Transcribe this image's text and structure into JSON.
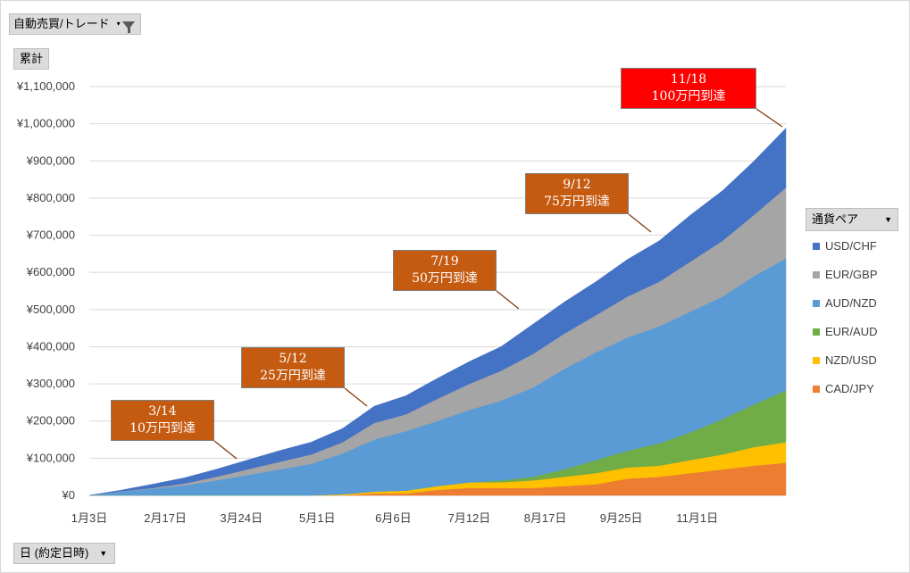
{
  "filter_button": {
    "label": "自動売買/トレード",
    "arrow": "▾",
    "icon": "funnel-icon"
  },
  "value_button": {
    "label": "累計"
  },
  "axis_button": {
    "label": "日 (約定日時)",
    "arrow": "▼"
  },
  "legend": {
    "title": "通貨ペア",
    "arrow": "▼"
  },
  "callouts": [
    {
      "date": "3/14",
      "text": "10万円到達",
      "color": "#c55a11"
    },
    {
      "date": "5/12",
      "text": "25万円到達",
      "color": "#c55a11"
    },
    {
      "date": "7/19",
      "text": "50万円到達",
      "color": "#c55a11"
    },
    {
      "date": "9/12",
      "text": "75万円到達",
      "color": "#c55a11"
    },
    {
      "date": "11/18",
      "text": "100万円到達",
      "color": "#ff0000"
    }
  ],
  "chart_data": {
    "type": "area",
    "stacked": true,
    "title": "",
    "xlabel": "日 (約定日時)",
    "ylabel": "累計",
    "ylim": [
      0,
      1100000
    ],
    "yticks": [
      0,
      100000,
      200000,
      300000,
      400000,
      500000,
      600000,
      700000,
      800000,
      900000,
      1000000,
      1100000
    ],
    "ytick_labels": [
      "¥0",
      "¥100,000",
      "¥200,000",
      "¥300,000",
      "¥400,000",
      "¥500,000",
      "¥600,000",
      "¥700,000",
      "¥800,000",
      "¥900,000",
      "¥1,000,000",
      "¥1,100,000"
    ],
    "xtick_labels": [
      "1月3日",
      "2月17日",
      "3月24日",
      "5月1日",
      "6月6日",
      "7月12日",
      "8月17日",
      "9月25日",
      "11月1日"
    ],
    "x_day_index": [
      0,
      10,
      20,
      30,
      40,
      50,
      60,
      70,
      80,
      90,
      100,
      110,
      120,
      130,
      140,
      150,
      160,
      170,
      180,
      190,
      200,
      210,
      220
    ],
    "xtick_day_index": [
      0,
      24,
      48,
      72,
      96,
      120,
      144,
      168,
      192
    ],
    "legend_position": "right",
    "grid": true,
    "series": [
      {
        "name": "CAD/JPY",
        "color": "#ed7d31",
        "values": [
          0,
          0,
          0,
          0,
          0,
          0,
          0,
          0,
          0,
          5000,
          5000,
          15000,
          20000,
          20000,
          20000,
          25000,
          30000,
          45000,
          50000,
          60000,
          70000,
          80000,
          88000
        ]
      },
      {
        "name": "NZD/USD",
        "color": "#ffc000",
        "values": [
          0,
          0,
          0,
          0,
          0,
          0,
          0,
          0,
          3000,
          5000,
          8000,
          10000,
          15000,
          15000,
          20000,
          25000,
          30000,
          30000,
          30000,
          35000,
          40000,
          50000,
          55000
        ]
      },
      {
        "name": "EUR/AUD",
        "color": "#70ad47",
        "values": [
          0,
          0,
          0,
          0,
          0,
          0,
          0,
          0,
          0,
          0,
          0,
          0,
          0,
          5000,
          10000,
          20000,
          35000,
          45000,
          60000,
          75000,
          95000,
          115000,
          140000
        ]
      },
      {
        "name": "AUD/NZD",
        "color": "#5b9bd5",
        "values": [
          0,
          10000,
          18000,
          27000,
          40000,
          55000,
          70000,
          85000,
          110000,
          140000,
          160000,
          175000,
          195000,
          215000,
          240000,
          270000,
          290000,
          305000,
          315000,
          325000,
          330000,
          345000,
          355000
        ]
      },
      {
        "name": "EUR/GBP",
        "color": "#a5a5a5",
        "values": [
          0,
          1000,
          2000,
          5000,
          10000,
          15000,
          20000,
          25000,
          30000,
          45000,
          45000,
          60000,
          70000,
          80000,
          90000,
          95000,
          100000,
          110000,
          120000,
          135000,
          150000,
          165000,
          190000
        ]
      },
      {
        "name": "USD/CHF",
        "color": "#4472c4",
        "values": [
          0,
          3000,
          10000,
          15000,
          20000,
          25000,
          30000,
          33000,
          37000,
          45000,
          50000,
          55000,
          60000,
          65000,
          80000,
          85000,
          90000,
          100000,
          110000,
          125000,
          135000,
          145000,
          160000
        ]
      }
    ]
  }
}
